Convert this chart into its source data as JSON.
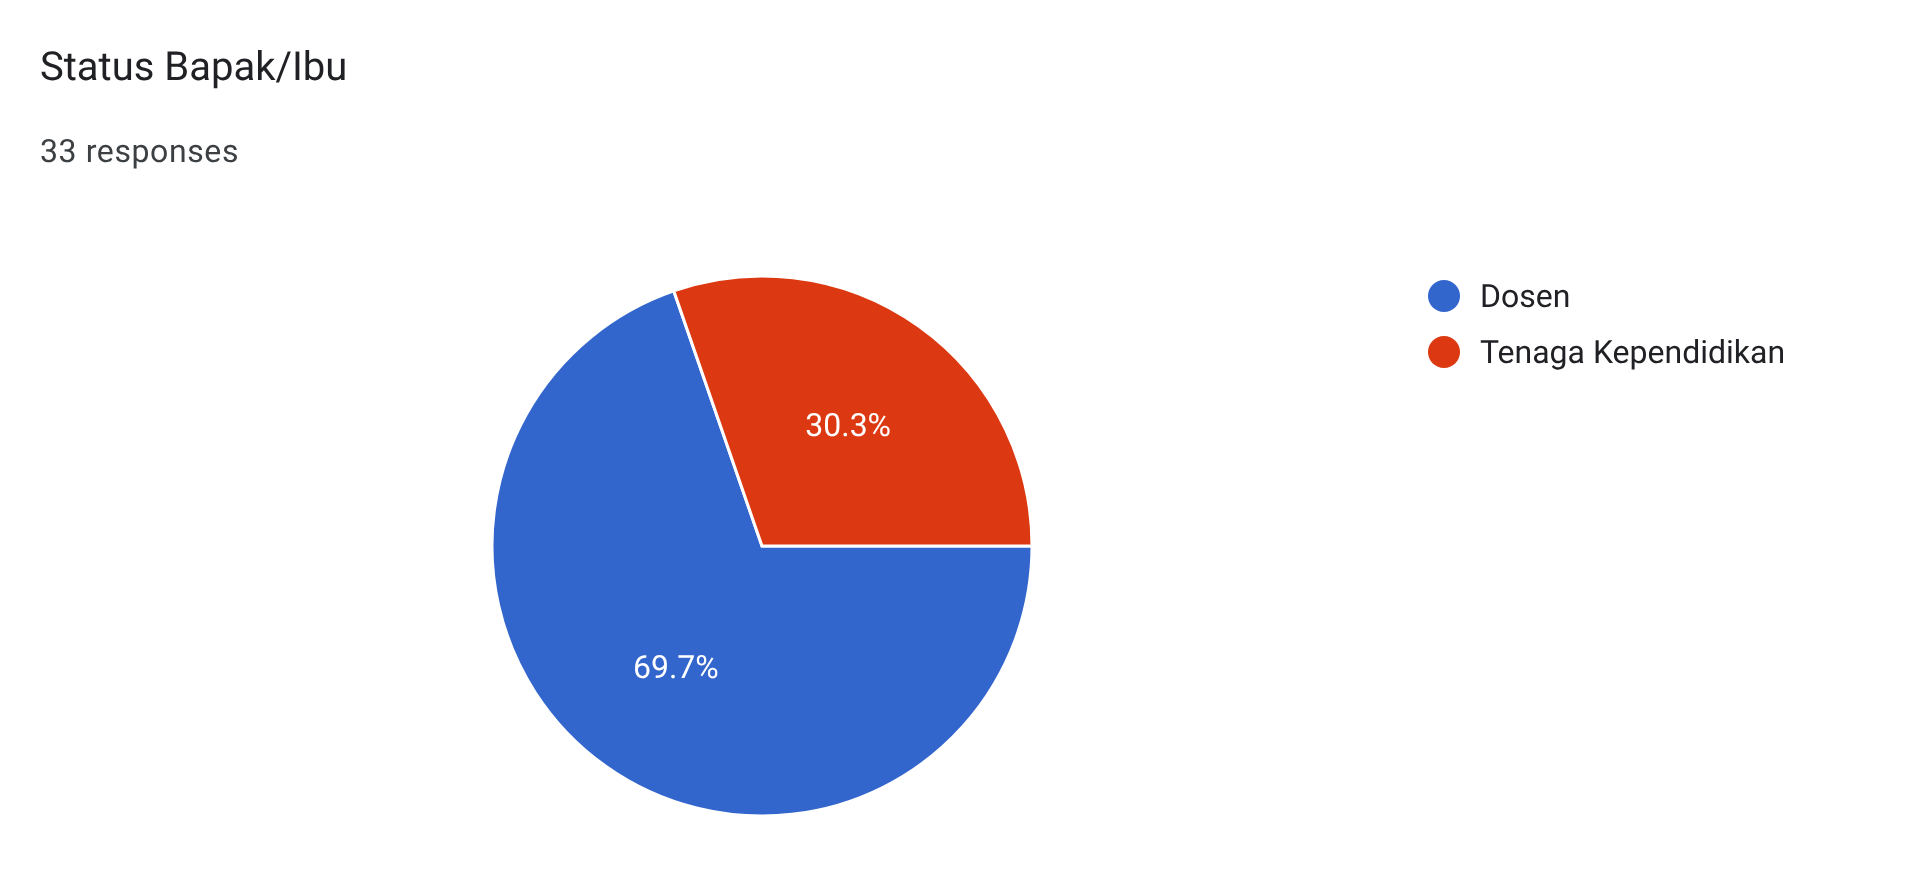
{
  "chart_data": {
    "type": "pie",
    "title": "Status Bapak/Ibu",
    "subtitle": "33 responses",
    "categories": [
      "Dosen",
      "Tenaga Kependidikan"
    ],
    "values": [
      69.7,
      30.3
    ],
    "colors": [
      "#3366cc",
      "#dc3912"
    ],
    "value_labels": [
      "69.7%",
      "30.3%"
    ],
    "legend": "right"
  }
}
